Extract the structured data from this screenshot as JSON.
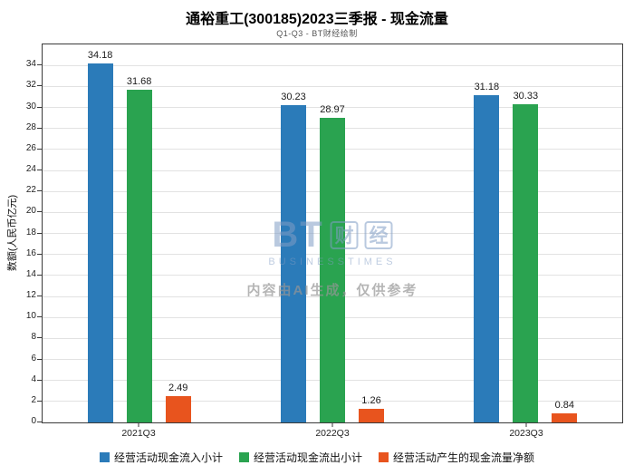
{
  "header": {
    "title": "通裕重工(300185)2023三季报 - 现金流量",
    "subtitle": "Q1-Q3 - BT财经绘制"
  },
  "chart_data": {
    "type": "bar",
    "title": "通裕重工(300185)2023三季报 - 现金流量",
    "subtitle": "Q1-Q3 - BT财经绘制",
    "categories": [
      "2021Q3",
      "2022Q3",
      "2023Q3"
    ],
    "series": [
      {
        "name": "经营活动现金流入小计",
        "color": "#2b7bb9",
        "values": [
          34.18,
          30.23,
          31.18
        ]
      },
      {
        "name": "经营活动现金流出小计",
        "color": "#2aa350",
        "values": [
          31.68,
          28.97,
          30.33
        ]
      },
      {
        "name": "经营活动产生的现金流量净额",
        "color": "#e8541e",
        "values": [
          2.49,
          1.26,
          0.84
        ]
      }
    ],
    "xlabel": "",
    "ylabel": "数额(人民币亿元)",
    "ylim": [
      0,
      36
    ],
    "yticks": [
      0,
      2,
      4,
      6,
      8,
      10,
      12,
      14,
      16,
      18,
      20,
      22,
      24,
      26,
      28,
      30,
      32,
      34
    ],
    "grid": true,
    "legend_position": "bottom"
  },
  "watermark": {
    "logo_bt": "BT",
    "logo_cai": "财",
    "logo_jing": "经",
    "logo_subtext": "BUSINESSTIMES",
    "note": "内容由AI生成，仅供参考"
  }
}
